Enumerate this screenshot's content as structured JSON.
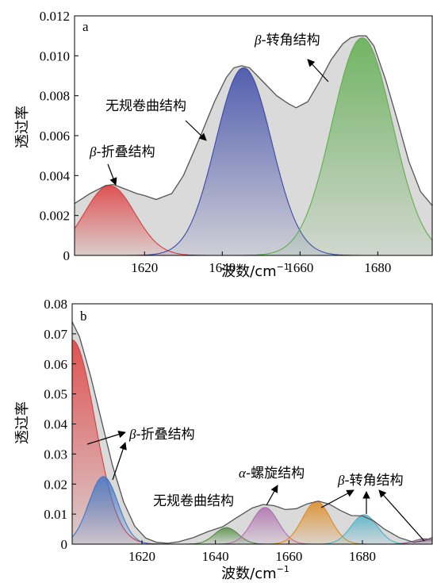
{
  "chart_data": [
    {
      "type": "area",
      "panel_label": "a",
      "xlabel": "波数/cm",
      "xlabel_sup": "−1",
      "ylabel": "透过率",
      "xlim": [
        1602,
        1694
      ],
      "ylim": [
        0,
        0.012
      ],
      "xticks": [
        1620,
        1640,
        1660,
        1680
      ],
      "xtick_labels": [
        "1620",
        "1640",
        "1660",
        "1680"
      ],
      "yticks": [
        0,
        0.002,
        0.004,
        0.006,
        0.008,
        0.01,
        0.012
      ],
      "ytick_labels": [
        "0",
        "0.002",
        "0.004",
        "0.006",
        "0.008",
        "0.010",
        "0.012"
      ],
      "envelope": {
        "x": [
          1602,
          1606,
          1610,
          1612,
          1614,
          1618,
          1620,
          1623,
          1627,
          1630,
          1634,
          1638,
          1641,
          1643,
          1645,
          1647,
          1650,
          1654,
          1657,
          1659,
          1662,
          1665,
          1668,
          1671,
          1673,
          1675,
          1677,
          1679,
          1682,
          1685,
          1688,
          1691,
          1694
        ],
        "y": [
          0.0026,
          0.0031,
          0.0035,
          0.00355,
          0.0034,
          0.0031,
          0.003,
          0.0028,
          0.0031,
          0.004,
          0.0058,
          0.0077,
          0.0089,
          0.0094,
          0.0095,
          0.0094,
          0.0088,
          0.008,
          0.0076,
          0.0074,
          0.0077,
          0.0087,
          0.0098,
          0.0106,
          0.0109,
          0.011,
          0.011,
          0.0105,
          0.0088,
          0.0068,
          0.0047,
          0.0032,
          0.0025
        ]
      },
      "series": [
        {
          "name": "β-折叠结构",
          "color": "#e03b3b",
          "center": 1611,
          "height": 0.0035,
          "sigma": 6.5
        },
        {
          "name": "无规卷曲结构",
          "color": "#3b49a8",
          "center": 1645.5,
          "height": 0.0094,
          "sigma": 7.2
        },
        {
          "name": "β-转角结构",
          "color": "#5fae4e",
          "center": 1676,
          "height": 0.0109,
          "sigma": 7.8
        }
      ],
      "annotations": [
        {
          "prefix": "β",
          "text": "-折叠结构"
        },
        {
          "prefix": "",
          "text": "无规卷曲结构"
        },
        {
          "prefix": "β",
          "text": "-转角结构"
        }
      ]
    },
    {
      "type": "area",
      "panel_label": "b",
      "xlabel": "波数/cm",
      "xlabel_sup": "−1",
      "ylabel": "透过率",
      "xlim": [
        1601,
        1699
      ],
      "ylim": [
        0,
        0.08
      ],
      "xticks": [
        1620,
        1640,
        1660,
        1680
      ],
      "xtick_labels": [
        "1620",
        "1640",
        "1660",
        "1680"
      ],
      "yticks": [
        0,
        0.01,
        0.02,
        0.03,
        0.04,
        0.05,
        0.06,
        0.07,
        0.08
      ],
      "ytick_labels": [
        "0",
        "0.01",
        "0.02",
        "0.03",
        "0.04",
        "0.05",
        "0.06",
        "0.07",
        "0.08"
      ],
      "envelope": {
        "x": [
          1601,
          1603,
          1606,
          1609,
          1612,
          1615,
          1618,
          1621,
          1624,
          1627,
          1630,
          1634,
          1638,
          1642,
          1646,
          1650,
          1653,
          1656,
          1659,
          1662,
          1665,
          1668,
          1671,
          1674,
          1677,
          1680,
          1683,
          1686,
          1690,
          1694,
          1697,
          1699
        ],
        "y": [
          0.074,
          0.069,
          0.056,
          0.041,
          0.026,
          0.014,
          0.006,
          0.002,
          0.0006,
          0.0003,
          0.0008,
          0.0022,
          0.0042,
          0.0058,
          0.009,
          0.012,
          0.0132,
          0.0128,
          0.0115,
          0.0118,
          0.0134,
          0.0143,
          0.0133,
          0.0112,
          0.0095,
          0.0094,
          0.0078,
          0.005,
          0.0022,
          0.0006,
          0.0012,
          0.0022
        ]
      },
      "series": [
        {
          "name": "β-折叠结构 (1)",
          "color": "#e03b3b",
          "center": 1601,
          "height": 0.068,
          "sigma": 6.2
        },
        {
          "name": "β-折叠结构 (2)",
          "color": "#3f79c9",
          "center": 1609.5,
          "height": 0.0225,
          "sigma": 4.0
        },
        {
          "name": "无规卷曲结构",
          "color": "#4f8a3c",
          "center": 1643,
          "height": 0.0055,
          "sigma": 3.2
        },
        {
          "name": "α-螺旋结构",
          "color": "#b06fae",
          "center": 1653.5,
          "height": 0.0122,
          "sigma": 3.6
        },
        {
          "name": "β-转角结构 (1)",
          "color": "#e08a1e",
          "center": 1667.5,
          "height": 0.0142,
          "sigma": 3.8
        },
        {
          "name": "β-转角结构 (2)",
          "color": "#4fb3c9",
          "center": 1680.5,
          "height": 0.0098,
          "sigma": 3.6
        },
        {
          "name": "β-转角结构 (3)",
          "color": "#8a5a8a",
          "center": 1697,
          "height": 0.0018,
          "sigma": 3.0
        }
      ],
      "annotations": [
        {
          "prefix": "β",
          "text": "-折叠结构"
        },
        {
          "prefix": "α",
          "text": "-螺旋结构"
        },
        {
          "prefix": "",
          "text": "无规卷曲结构"
        },
        {
          "prefix": "β",
          "text": "-转角结构"
        }
      ]
    }
  ]
}
